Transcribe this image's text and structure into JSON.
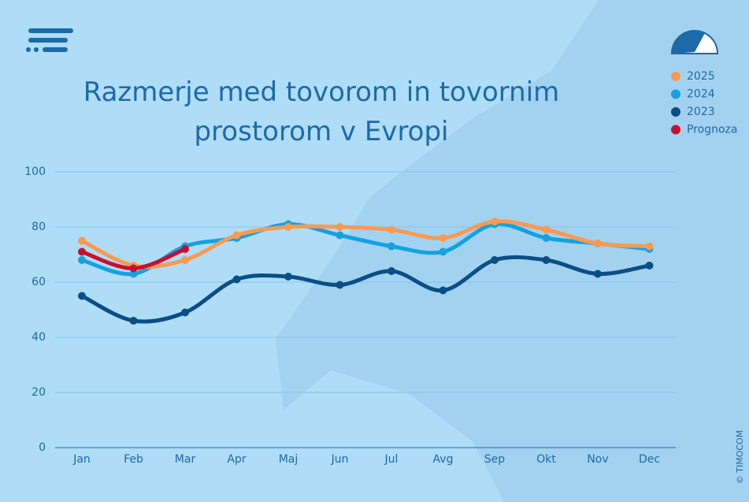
{
  "chart_data": {
    "type": "line",
    "title": "Razmerje med tovorom in tovornim prostorom v Evropi",
    "categories": [
      "Jan",
      "Feb",
      "Mar",
      "Apr",
      "Maj",
      "Jun",
      "Jul",
      "Avg",
      "Sep",
      "Okt",
      "Nov",
      "Dec"
    ],
    "series": [
      {
        "name": "2025",
        "color": "#f89a52",
        "values": [
          75,
          66,
          68,
          77,
          80,
          80,
          79,
          76,
          82,
          79,
          74,
          73
        ]
      },
      {
        "name": "2024",
        "color": "#14a2e0",
        "values": [
          68,
          63,
          73,
          76,
          81,
          77,
          73,
          71,
          81,
          76,
          74,
          72
        ]
      },
      {
        "name": "2023",
        "color": "#0b4e85",
        "values": [
          55,
          46,
          49,
          61,
          62,
          59,
          64,
          57,
          68,
          68,
          63,
          66
        ]
      },
      {
        "name": "Prognoza",
        "color": "#c8102e",
        "values": [
          71,
          65,
          72,
          null,
          null,
          null,
          null,
          null,
          null,
          null,
          null,
          null
        ]
      }
    ],
    "ylim": [
      0,
      100
    ],
    "yticks": [
      0,
      20,
      40,
      60,
      80,
      100
    ],
    "grid": true,
    "credit": "© TIMOCOM"
  }
}
